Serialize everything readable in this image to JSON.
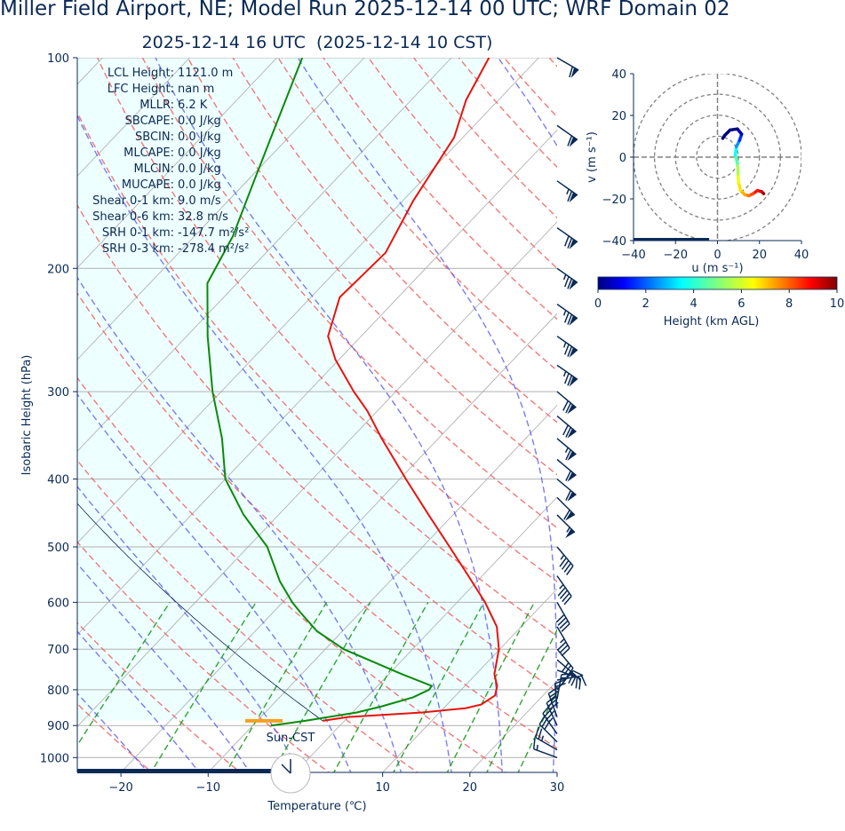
{
  "title": "Miller Field Airport, NE; Model Run 2025-12-14 00 UTC; WRF Domain 02",
  "subtitle": "2025-12-14 16 UTC  (2025-12-14 10 CST)",
  "sun_label": "Sun-CST",
  "params": [
    {
      "name": "LCL Height",
      "value": "1121.0 m"
    },
    {
      "name": "LFC Height",
      "value": "nan m"
    },
    {
      "name": "MLLR",
      "value": "6.2 K"
    },
    {
      "name": "SBCAPE",
      "value": "0.0 J/kg"
    },
    {
      "name": "SBCIN",
      "value": "0.0 J/kg"
    },
    {
      "name": "MLCAPE",
      "value": "0.0 J/kg"
    },
    {
      "name": "MLCIN",
      "value": "0.0 J/kg"
    },
    {
      "name": "MUCAPE",
      "value": "0.0 J/kg"
    },
    {
      "name": "Shear 0-1 km",
      "value": "9.0 m/s"
    },
    {
      "name": "Shear 0-6 km",
      "value": "32.8 m/s"
    },
    {
      "name": "SRH 0-1 km",
      "value": "-147.7 m²/s²"
    },
    {
      "name": "SRH 0-3 km",
      "value": "-278.4 m²/s²"
    }
  ],
  "chart_data": [
    {
      "type": "line",
      "name": "skew-T",
      "xlabel": "Temperature (℃)",
      "ylabel": "Isobaric Height (hPa)",
      "xlim": [
        -25,
        30
      ],
      "ylim": [
        1050,
        100
      ],
      "x_ticks": [
        -20,
        -10,
        10,
        20,
        30
      ],
      "y_ticks": [
        100,
        200,
        300,
        400,
        500,
        600,
        700,
        800,
        900,
        1000
      ],
      "temperature": {
        "color": "#e8130d",
        "points": [
          {
            "p": 886,
            "t": -2.5
          },
          {
            "p": 875,
            "t": 0.0
          },
          {
            "p": 862,
            "t": 8.0
          },
          {
            "p": 850,
            "t": 12.5
          },
          {
            "p": 840,
            "t": 13.9
          },
          {
            "p": 815,
            "t": 14.5
          },
          {
            "p": 790,
            "t": 13.7
          },
          {
            "p": 760,
            "t": 12.1
          },
          {
            "p": 700,
            "t": 9.9
          },
          {
            "p": 650,
            "t": 7.2
          },
          {
            "p": 600,
            "t": 3.2
          },
          {
            "p": 550,
            "t": -1.6
          },
          {
            "p": 500,
            "t": -6.9
          },
          {
            "p": 450,
            "t": -12.8
          },
          {
            "p": 400,
            "t": -19.3
          },
          {
            "p": 350,
            "t": -26.5
          },
          {
            "p": 320,
            "t": -31.1
          },
          {
            "p": 300,
            "t": -34.8
          },
          {
            "p": 270,
            "t": -40.4
          },
          {
            "p": 250,
            "t": -43.8
          },
          {
            "p": 220,
            "t": -46.7
          },
          {
            "p": 190,
            "t": -46.3
          },
          {
            "p": 160,
            "t": -48.8
          },
          {
            "p": 130,
            "t": -51.0
          },
          {
            "p": 115,
            "t": -53.7
          },
          {
            "p": 100,
            "t": -55.7
          }
        ]
      },
      "dewpoint": {
        "color": "#0a8a0a",
        "points": [
          {
            "p": 900,
            "t": -7.9
          },
          {
            "p": 886,
            "t": -4.5
          },
          {
            "p": 862,
            "t": 0.5
          },
          {
            "p": 845,
            "t": 2.7
          },
          {
            "p": 820,
            "t": 5.3
          },
          {
            "p": 800,
            "t": 6.3
          },
          {
            "p": 790,
            "t": 6.2
          },
          {
            "p": 760,
            "t": 1.5
          },
          {
            "p": 700,
            "t": -7.9
          },
          {
            "p": 660,
            "t": -12.9
          },
          {
            "p": 620,
            "t": -16.9
          },
          {
            "p": 600,
            "t": -18.9
          },
          {
            "p": 560,
            "t": -22.6
          },
          {
            "p": 500,
            "t": -27.8
          },
          {
            "p": 450,
            "t": -34.0
          },
          {
            "p": 400,
            "t": -40.0
          },
          {
            "p": 350,
            "t": -44.8
          },
          {
            "p": 300,
            "t": -51.0
          },
          {
            "p": 250,
            "t": -57.6
          },
          {
            "p": 210,
            "t": -63.4
          },
          {
            "p": 180,
            "t": -65.6
          },
          {
            "p": 150,
            "t": -69.2
          },
          {
            "p": 130,
            "t": -72.0
          },
          {
            "p": 100,
            "t": -77.1
          }
        ]
      },
      "parcel_color": "#0a2a55",
      "dry_adiabat_color": "#f06060",
      "moist_adiabat_color": "#5050ee",
      "mixing_ratio_color": "#1a9a1a",
      "isotherm_color": "#aaaaaa",
      "fill_color": "#eeffff",
      "grid": true,
      "wind_barbs": {
        "color": "#0a2a55",
        "units": "kt",
        "levels": [
          {
            "p": 1000,
            "dir": 290,
            "spd": 15
          },
          {
            "p": 975,
            "dir": 300,
            "spd": 25
          },
          {
            "p": 950,
            "dir": 315,
            "spd": 30
          },
          {
            "p": 925,
            "dir": 325,
            "spd": 35
          },
          {
            "p": 900,
            "dir": 335,
            "spd": 30
          },
          {
            "p": 875,
            "dir": 340,
            "spd": 25
          },
          {
            "p": 850,
            "dir": 355,
            "spd": 20
          },
          {
            "p": 825,
            "dir": 10,
            "spd": 15
          },
          {
            "p": 800,
            "dir": 40,
            "spd": 15
          },
          {
            "p": 775,
            "dir": 80,
            "spd": 15
          },
          {
            "p": 750,
            "dir": 110,
            "spd": 20
          },
          {
            "p": 725,
            "dir": 130,
            "spd": 25
          },
          {
            "p": 700,
            "dir": 140,
            "spd": 30
          },
          {
            "p": 650,
            "dir": 150,
            "spd": 35
          },
          {
            "p": 600,
            "dir": 150,
            "spd": 40
          },
          {
            "p": 550,
            "dir": 145,
            "spd": 45
          },
          {
            "p": 500,
            "dir": 140,
            "spd": 45
          },
          {
            "p": 450,
            "dir": 135,
            "spd": 55
          },
          {
            "p": 425,
            "dir": 135,
            "spd": 60
          },
          {
            "p": 400,
            "dir": 130,
            "spd": 60
          },
          {
            "p": 375,
            "dir": 130,
            "spd": 60
          },
          {
            "p": 350,
            "dir": 130,
            "spd": 65
          },
          {
            "p": 325,
            "dir": 130,
            "spd": 70
          },
          {
            "p": 300,
            "dir": 130,
            "spd": 70
          },
          {
            "p": 275,
            "dir": 125,
            "spd": 75
          },
          {
            "p": 250,
            "dir": 125,
            "spd": 75
          },
          {
            "p": 225,
            "dir": 125,
            "spd": 75
          },
          {
            "p": 200,
            "dir": 125,
            "spd": 75
          },
          {
            "p": 175,
            "dir": 125,
            "spd": 70
          },
          {
            "p": 150,
            "dir": 125,
            "spd": 65
          },
          {
            "p": 125,
            "dir": 125,
            "spd": 60
          },
          {
            "p": 100,
            "dir": 120,
            "spd": 60
          }
        ]
      }
    },
    {
      "type": "line",
      "name": "hodograph",
      "xlabel": "u (m s⁻¹)",
      "ylabel": "v (m s⁻¹)",
      "xlim": [
        -40,
        40
      ],
      "ylim": [
        -40,
        40
      ],
      "x_ticks": [
        -40,
        -20,
        0,
        20,
        40
      ],
      "y_ticks": [
        -40,
        -20,
        0,
        20,
        40
      ],
      "rings": [
        10,
        20,
        30,
        40
      ],
      "points": [
        {
          "u": 22.0,
          "v": -17.5,
          "h": 0.0
        },
        {
          "u": 21.0,
          "v": -16.5,
          "h": 0.5
        },
        {
          "u": 19.0,
          "v": -16.0,
          "h": 1.0
        },
        {
          "u": 17.0,
          "v": -17.5,
          "h": 1.5
        },
        {
          "u": 15.0,
          "v": -18.5,
          "h": 2.0
        },
        {
          "u": 13.0,
          "v": -18.0,
          "h": 2.5
        },
        {
          "u": 11.0,
          "v": -16.0,
          "h": 3.0
        },
        {
          "u": 10.0,
          "v": -12.0,
          "h": 3.5
        },
        {
          "u": 9.8,
          "v": -8.0,
          "h": 4.0
        },
        {
          "u": 9.5,
          "v": -3.0,
          "h": 5.0
        },
        {
          "u": 8.5,
          "v": 1.0,
          "h": 6.0
        },
        {
          "u": 9.0,
          "v": 5.0,
          "h": 7.0
        },
        {
          "u": 10.5,
          "v": 8.0,
          "h": 8.0
        },
        {
          "u": 11.5,
          "v": 11.0,
          "h": 9.0
        },
        {
          "u": 9.5,
          "v": 13.5,
          "h": 10.0
        },
        {
          "u": 6.0,
          "v": 13.0,
          "h": 11.0
        },
        {
          "u": 3.5,
          "v": 10.5,
          "h": 12.0
        },
        {
          "u": 2.5,
          "v": 9.0,
          "h": 13.0
        }
      ],
      "colorbar": {
        "label": "Height (km AGL)",
        "ticks": [
          0,
          2,
          4,
          6,
          8,
          10
        ],
        "range": [
          0,
          10
        ]
      }
    }
  ]
}
